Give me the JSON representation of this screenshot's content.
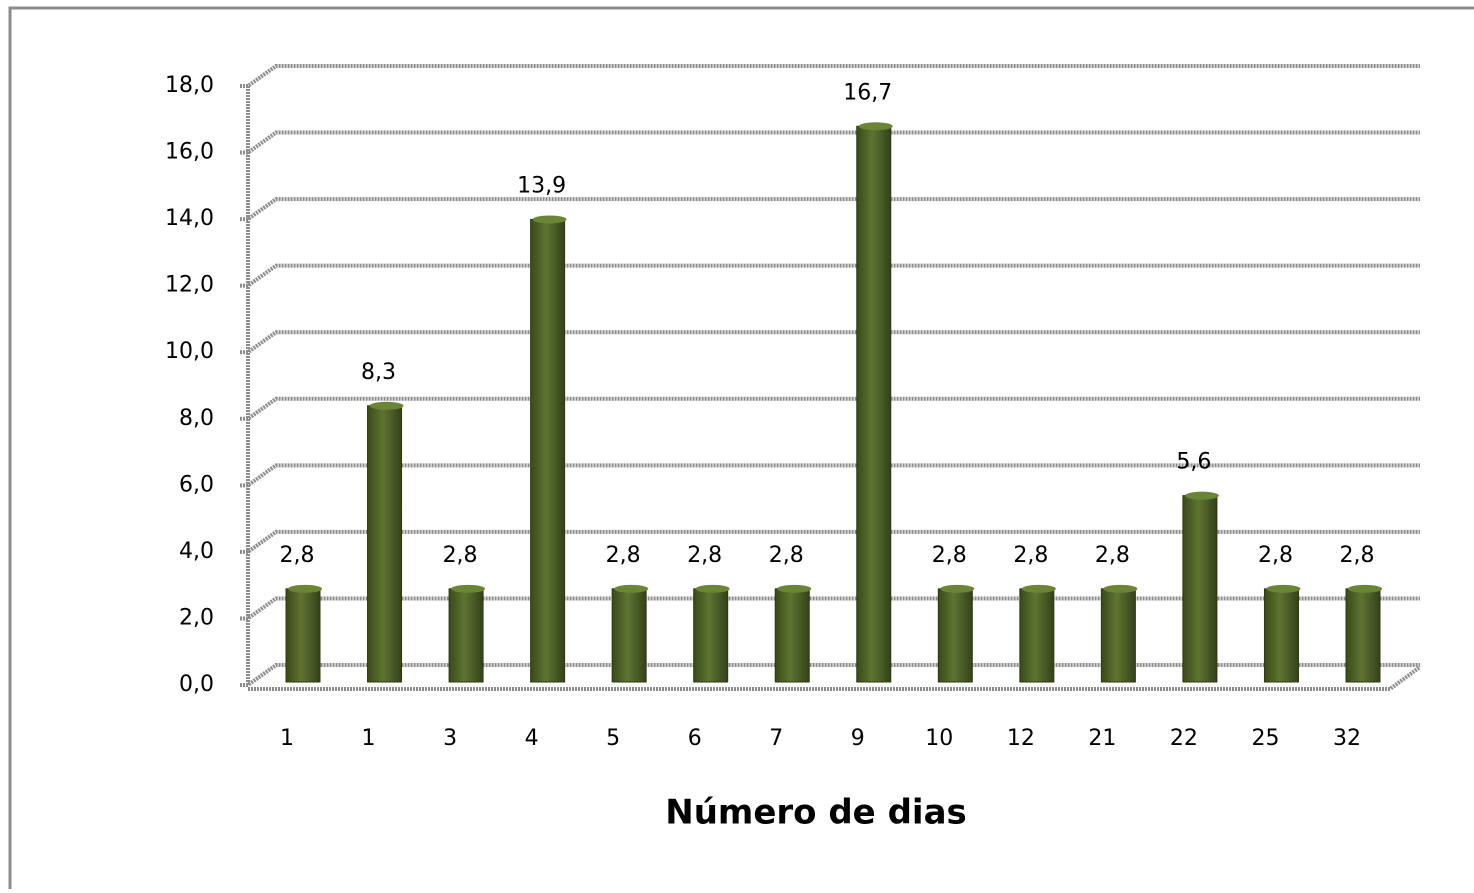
{
  "chart_data": {
    "type": "bar",
    "x_label": "Número de dias",
    "categories": [
      "1",
      "1",
      "3",
      "4",
      "5",
      "6",
      "7",
      "9",
      "10",
      "12",
      "21",
      "22",
      "25",
      "32"
    ],
    "values": [
      2.8,
      8.3,
      2.8,
      13.9,
      2.8,
      2.8,
      2.8,
      16.7,
      2.8,
      2.8,
      2.8,
      5.6,
      2.8,
      2.8
    ],
    "value_labels": [
      "2,8",
      "8,3",
      "2,8",
      "13,9",
      "2,8",
      "2,8",
      "2,8",
      "16,7",
      "2,8",
      "2,8",
      "2,8",
      "5,6",
      "2,8",
      "2,8"
    ],
    "color": "#4f6228",
    "ylim": [
      0,
      18
    ],
    "yticks": [
      {
        "value": 0,
        "label": "0,0"
      },
      {
        "value": 2,
        "label": "2,0"
      },
      {
        "value": 4,
        "label": "4,0"
      },
      {
        "value": 6,
        "label": "6,0"
      },
      {
        "value": 8,
        "label": "8,0"
      },
      {
        "value": 10,
        "label": "10,0"
      },
      {
        "value": 12,
        "label": "12,0"
      },
      {
        "value": 14,
        "label": "14,0"
      },
      {
        "value": 16,
        "label": "16,0"
      },
      {
        "value": 18,
        "label": "18,0"
      }
    ],
    "grid": true
  }
}
